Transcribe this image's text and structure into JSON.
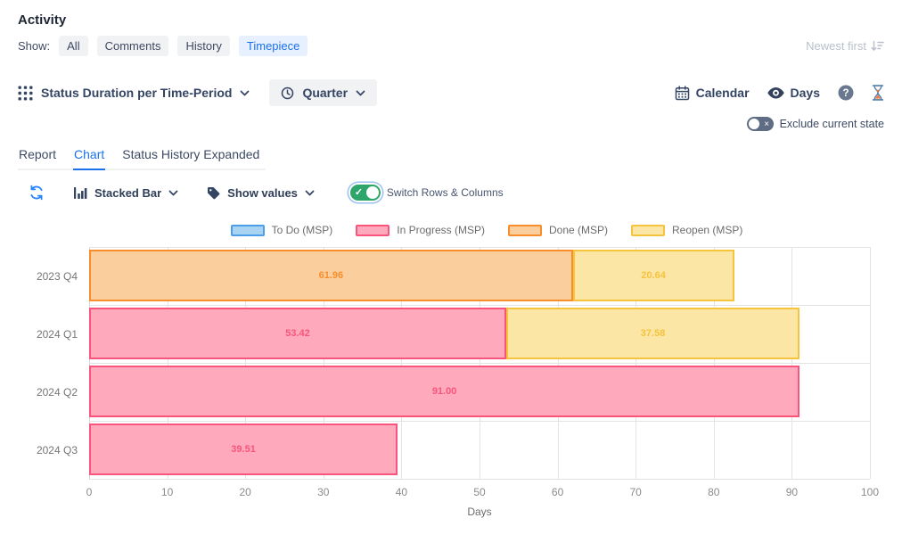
{
  "header": {
    "title": "Activity",
    "show_label": "Show:",
    "filters": [
      "All",
      "Comments",
      "History",
      "Timepiece"
    ],
    "active_filter": "Timepiece",
    "sort_label": "Newest first"
  },
  "report_toolbar": {
    "gadget_selector": "Status Duration per Time-Period",
    "period_selector": "Quarter",
    "calendar_label": "Calendar",
    "unit_label": "Days",
    "exclude_toggle": {
      "label": "Exclude current state",
      "state": "off"
    }
  },
  "tabs": {
    "items": [
      "Report",
      "Chart",
      "Status History Expanded"
    ],
    "active": "Chart"
  },
  "chart_toolbar": {
    "chart_type_selector": "Stacked Bar",
    "values_selector": "Show values",
    "switch_toggle": {
      "label": "Switch Rows & Columns",
      "state": "on"
    }
  },
  "chart_data": {
    "type": "bar",
    "orientation": "horizontal",
    "stacked": true,
    "categories": [
      "2023 Q4",
      "2024 Q1",
      "2024 Q2",
      "2024 Q3"
    ],
    "series": [
      {
        "name": "To Do (MSP)",
        "fill": "#A8D3F3",
        "border": "#4B9FE9",
        "values": [
          0,
          0,
          0,
          0
        ]
      },
      {
        "name": "In Progress (MSP)",
        "fill": "#FFA9BC",
        "border": "#F9557C",
        "values": [
          0,
          53.42,
          91.0,
          39.51
        ]
      },
      {
        "name": "Done (MSP)",
        "fill": "#FBCE9E",
        "border": "#F78E2B",
        "values": [
          61.96,
          0,
          0,
          0
        ]
      },
      {
        "name": "Reopen (MSP)",
        "fill": "#FCE6A5",
        "border": "#F5C33C",
        "values": [
          20.64,
          37.58,
          0,
          0
        ]
      }
    ],
    "xlabel": "Days",
    "xlim": [
      0,
      100
    ],
    "xticks": [
      0,
      10,
      20,
      30,
      40,
      50,
      60,
      70,
      80,
      90,
      100
    ],
    "grid": true,
    "legend_position": "top",
    "value_labels": true,
    "value_label_decimals": 2
  },
  "colors": {
    "accent_blue": "#1b72e8",
    "toolbar_text": "#344563",
    "toggle_on_green": "#2ea66b",
    "toggle_off_slate": "#5e6c84"
  }
}
